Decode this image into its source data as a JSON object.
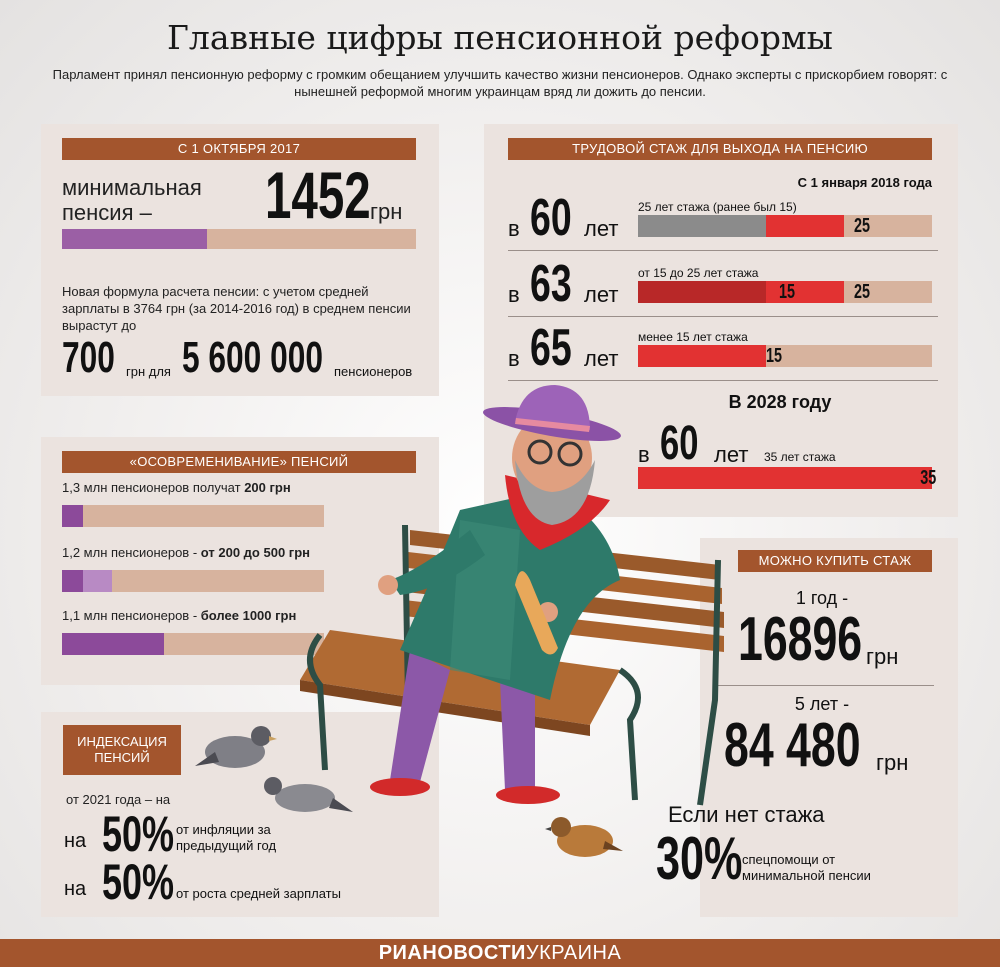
{
  "title": "Главные цифры пенсионной реформы",
  "subtitle": "Парламент принял пенсионную реформу с громким обещанием улучшить качество жизни пенсионеров. Однако эксперты с прискорбием говорят: с нынешней реформой многим украинцам вряд ли дожить до пенсии.",
  "min_pension": {
    "header": "С 1 ОКТЯБРЯ 2017",
    "label_line1": "минимальная",
    "label_line2": "пенсия –",
    "value": "1452",
    "unit": "грн",
    "bar_fraction": 0.41,
    "formula_text": "Новая формула расчета пенсии: с учетом средней зарплаты в 3764 грн (за 2014-2016 год) в среднем пенсии вырастут до",
    "amount": "700",
    "amount_unit": "грн для",
    "count": "5 600 000",
    "count_unit": "пенсионеров"
  },
  "modernization": {
    "header": "«ОСОВРЕМЕНИВАНИЕ» ПЕНСИЙ",
    "rows": [
      {
        "text": "1,3 млн пенсионеров получат ",
        "bold": "200 грн",
        "fill": 0.08,
        "fill2": 0
      },
      {
        "text": "1,2 млн пенсионеров - ",
        "bold": "от 200 до 500 грн",
        "fill": 0.08,
        "fill2": 0.19
      },
      {
        "text": "1,1 млн пенсионеров - ",
        "bold": "более 1000 грн",
        "fill": 0.39,
        "fill2": 0
      }
    ]
  },
  "indexation": {
    "header_line1": "ИНДЕКСАЦИЯ",
    "header_line2": "ПЕНСИЙ",
    "from": "от 2021 года – на",
    "rows": [
      {
        "prefix": "на",
        "value": "50%",
        "desc_line1": "от инфляции за",
        "desc_line2": "предыдущий год"
      },
      {
        "prefix": "на",
        "value": "50%",
        "desc_line1": "от роста средней зарплаты",
        "desc_line2": ""
      }
    ]
  },
  "work_experience": {
    "header": "ТРУДОВОЙ СТАЖ ДЛЯ ВЫХОДА НА ПЕНСИЮ",
    "date": "С 1 января 2018 года",
    "rows": [
      {
        "prefix": "в",
        "age": "60",
        "suffix": "лет",
        "note": "25 лет стажа (ранее был 15)",
        "label1": "25",
        "label2": ""
      },
      {
        "prefix": "в",
        "age": "63",
        "suffix": "лет",
        "note": "от 15 до 25 лет стажа",
        "label1": "15",
        "label2": "25"
      },
      {
        "prefix": "в",
        "age": "65",
        "suffix": "лет",
        "note": "менее 15 лет стажа",
        "label1": "15",
        "label2": ""
      }
    ],
    "year2028": "В 2028 году",
    "row2028": {
      "prefix": "в",
      "age": "60",
      "suffix": "лет",
      "note": "35 лет стажа",
      "label": "35"
    }
  },
  "buy_experience": {
    "header": "МОЖНО КУПИТЬ СТАЖ",
    "one_year_label": "1 год -",
    "one_year_value": "16896",
    "one_year_unit": "грн",
    "five_years_label": "5 лет -",
    "five_years_value": "84 480",
    "five_years_unit": "грн",
    "no_exp": "Если нет стажа",
    "pct": "30%",
    "pct_desc_line1": "спецпомощи от",
    "pct_desc_line2": "минимальной пенсии"
  },
  "brand_bold": "РИАНОВОСТИ",
  "brand_light": "УКРАИНА",
  "colors": {
    "accent": "#a3552d",
    "red": "#e23232",
    "dark_red": "#b82828",
    "purple": "#9b5fa5",
    "gray": "#8b8b8b",
    "bar_bg": "#d7b39e"
  }
}
